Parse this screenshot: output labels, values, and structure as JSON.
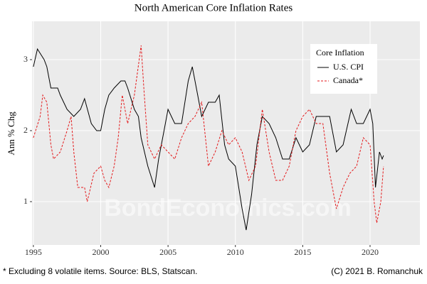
{
  "chart_data": {
    "type": "line",
    "title": "North American Core Inflation Rates",
    "y_label": "Ann % Chg",
    "footnote": "* Excluding 8 volatile items. Source: BLS, Statscan.",
    "credit": "(C) 2021 B. Romanchuk",
    "watermark": "BondEconomics.com",
    "legend_title": "Core Inflation",
    "legend_position": "top-right",
    "grid": true,
    "xlim": [
      1994.9,
      2023.7
    ],
    "ylim": [
      0.39,
      3.54
    ],
    "xticks": [
      1995,
      2000,
      2005,
      2010,
      2015,
      2020
    ],
    "yticks": [
      1,
      2,
      3
    ],
    "series": [
      {
        "name": "U.S. CPI",
        "color": "#000000",
        "dash": "solid",
        "x": [
          1995,
          1995.3,
          1995.8,
          1996,
          1996.3,
          1996.8,
          1997,
          1997.5,
          1998,
          1998.5,
          1998.8,
          1999.3,
          1999.7,
          2000,
          2000.3,
          2000.6,
          2001,
          2001.5,
          2001.8,
          2002,
          2002.5,
          2002.8,
          2003,
          2003.5,
          2004,
          2004.3,
          2004.7,
          2005,
          2005.5,
          2006,
          2006.5,
          2006.8,
          2007.2,
          2007.5,
          2008,
          2008.5,
          2008.8,
          2009.2,
          2009.5,
          2010,
          2010.5,
          2010.8,
          2011.2,
          2011.6,
          2012,
          2012.5,
          2013,
          2013.5,
          2014,
          2014.5,
          2015,
          2015.5,
          2016,
          2016.5,
          2017,
          2017.5,
          2018,
          2018.6,
          2019,
          2019.5,
          2020,
          2020.2,
          2020.4,
          2020.7,
          2020.9,
          2021
        ],
        "values": [
          2.9,
          3.15,
          3.0,
          2.9,
          2.6,
          2.6,
          2.5,
          2.3,
          2.2,
          2.3,
          2.45,
          2.1,
          2.0,
          2.0,
          2.3,
          2.5,
          2.6,
          2.7,
          2.7,
          2.6,
          2.3,
          2.2,
          1.9,
          1.5,
          1.2,
          1.6,
          2.0,
          2.3,
          2.1,
          2.1,
          2.7,
          2.9,
          2.5,
          2.2,
          2.4,
          2.4,
          2.5,
          1.8,
          1.6,
          1.5,
          0.9,
          0.6,
          1.1,
          1.8,
          2.2,
          2.1,
          1.9,
          1.6,
          1.6,
          1.9,
          1.7,
          1.8,
          2.2,
          2.2,
          2.2,
          1.7,
          1.8,
          2.3,
          2.1,
          2.1,
          2.3,
          2.1,
          1.2,
          1.7,
          1.6,
          1.65
        ]
      },
      {
        "name": "Canada*",
        "color": "#e41a1c",
        "dash": "dashed",
        "x": [
          1995,
          1995.5,
          1995.7,
          1996,
          1996.3,
          1996.5,
          1997,
          1997.5,
          1997.8,
          1998,
          1998.3,
          1998.8,
          1999,
          1999.5,
          2000,
          2000.3,
          2000.6,
          2001,
          2001.3,
          2001.6,
          2002,
          2002.5,
          2003,
          2003.2,
          2003.5,
          2004,
          2004.5,
          2005,
          2005.5,
          2006,
          2006.5,
          2007,
          2007.5,
          2008,
          2008.5,
          2009,
          2009.5,
          2010,
          2010.5,
          2011,
          2011.5,
          2012,
          2012.5,
          2013,
          2013.5,
          2014,
          2014.5,
          2015,
          2015.5,
          2016,
          2016.5,
          2017,
          2017.5,
          2018,
          2018.5,
          2019,
          2019.5,
          2020,
          2020.3,
          2020.5,
          2020.8,
          2021
        ],
        "values": [
          1.9,
          2.2,
          2.5,
          2.4,
          1.8,
          1.6,
          1.7,
          2.0,
          2.2,
          1.7,
          1.2,
          1.2,
          1.0,
          1.4,
          1.5,
          1.3,
          1.2,
          1.5,
          1.9,
          2.5,
          2.1,
          2.5,
          3.2,
          2.6,
          1.8,
          1.6,
          1.8,
          1.7,
          1.6,
          1.9,
          2.1,
          2.2,
          2.4,
          1.5,
          1.7,
          2.0,
          1.8,
          1.9,
          1.7,
          1.3,
          1.5,
          2.3,
          1.7,
          1.3,
          1.3,
          1.5,
          2.0,
          2.2,
          2.3,
          2.1,
          2.1,
          1.4,
          0.9,
          1.2,
          1.4,
          1.5,
          1.9,
          1.8,
          1.0,
          0.7,
          1.0,
          1.5
        ]
      }
    ]
  }
}
